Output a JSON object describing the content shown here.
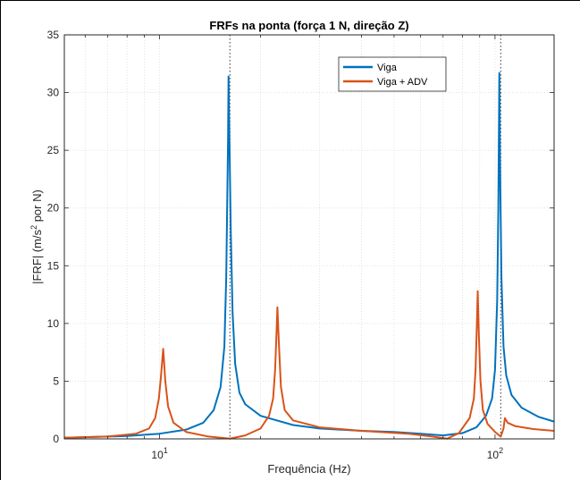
{
  "chart_data": {
    "type": "line",
    "title": "FRFs na ponta (força 1 N, direção Z)",
    "xlabel": "Frequência (Hz)",
    "ylabel_main": "|FRF| (m/s",
    "ylabel_sup": "2",
    "ylabel_tail": " por N)",
    "xscale": "log",
    "xlim": [
      5.2,
      150
    ],
    "ylim": [
      0,
      35
    ],
    "grid": true,
    "legend_position": "top-right",
    "yticks": [
      0,
      5,
      10,
      15,
      20,
      25,
      30,
      35
    ],
    "xticks": [
      {
        "value": 10,
        "base": "10",
        "exp": "1"
      },
      {
        "value": 100,
        "base": "10",
        "exp": "2"
      }
    ],
    "vlines": [
      16.2,
      104
    ],
    "series": [
      {
        "name": "Viga",
        "color": "#0072BD",
        "points": [
          [
            5.2,
            0.1
          ],
          [
            8,
            0.25
          ],
          [
            10,
            0.45
          ],
          [
            12,
            0.8
          ],
          [
            13.5,
            1.4
          ],
          [
            14.5,
            2.5
          ],
          [
            15.2,
            4.5
          ],
          [
            15.6,
            8
          ],
          [
            15.8,
            14
          ],
          [
            15.9,
            20
          ],
          [
            16.0,
            26
          ],
          [
            16.05,
            31.4
          ],
          [
            16.15,
            26
          ],
          [
            16.3,
            18
          ],
          [
            16.5,
            11
          ],
          [
            16.8,
            6.5
          ],
          [
            17.3,
            4.0
          ],
          [
            18,
            3.0
          ],
          [
            20,
            2.0
          ],
          [
            25,
            1.2
          ],
          [
            30,
            0.9
          ],
          [
            40,
            0.7
          ],
          [
            50,
            0.6
          ],
          [
            60,
            0.45
          ],
          [
            70,
            0.3
          ],
          [
            80,
            0.5
          ],
          [
            88,
            1.0
          ],
          [
            94,
            2.0
          ],
          [
            98,
            3.5
          ],
          [
            100,
            6
          ],
          [
            101.5,
            12
          ],
          [
            102.3,
            20
          ],
          [
            102.8,
            28
          ],
          [
            103,
            31.7
          ],
          [
            103.5,
            24
          ],
          [
            104.5,
            14
          ],
          [
            106,
            8
          ],
          [
            108,
            5.5
          ],
          [
            112,
            3.8
          ],
          [
            120,
            2.7
          ],
          [
            135,
            1.9
          ],
          [
            150,
            1.5
          ]
        ]
      },
      {
        "name": "Viga + ADV",
        "color": "#D95319",
        "points": [
          [
            5.2,
            0.1
          ],
          [
            7,
            0.2
          ],
          [
            8.5,
            0.45
          ],
          [
            9.3,
            0.9
          ],
          [
            9.7,
            1.8
          ],
          [
            9.95,
            3.5
          ],
          [
            10.1,
            5.5
          ],
          [
            10.25,
            7.8
          ],
          [
            10.4,
            5
          ],
          [
            10.6,
            2.8
          ],
          [
            11,
            1.4
          ],
          [
            12,
            0.6
          ],
          [
            14,
            0.2
          ],
          [
            16.2,
            0.02
          ],
          [
            18,
            0.3
          ],
          [
            20,
            0.9
          ],
          [
            21.2,
            2.0
          ],
          [
            21.8,
            3.5
          ],
          [
            22.1,
            6
          ],
          [
            22.3,
            9
          ],
          [
            22.45,
            11.4
          ],
          [
            22.7,
            8
          ],
          [
            23,
            4.5
          ],
          [
            23.6,
            2.5
          ],
          [
            25,
            1.6
          ],
          [
            30,
            1.0
          ],
          [
            40,
            0.7
          ],
          [
            55,
            0.45
          ],
          [
            65,
            0.2
          ],
          [
            72,
            0.02
          ],
          [
            78,
            0.5
          ],
          [
            84,
            1.8
          ],
          [
            86.5,
            3.5
          ],
          [
            87.5,
            6
          ],
          [
            88.3,
            10
          ],
          [
            88.8,
            12.8
          ],
          [
            89.5,
            9
          ],
          [
            90.5,
            5
          ],
          [
            92,
            2.5
          ],
          [
            95,
            1.3
          ],
          [
            100,
            0.6
          ],
          [
            104,
            0.2
          ],
          [
            106,
            0.9
          ],
          [
            107,
            1.8
          ],
          [
            109,
            1.4
          ],
          [
            115,
            1.1
          ],
          [
            130,
            0.85
          ],
          [
            150,
            0.7
          ]
        ]
      }
    ]
  }
}
